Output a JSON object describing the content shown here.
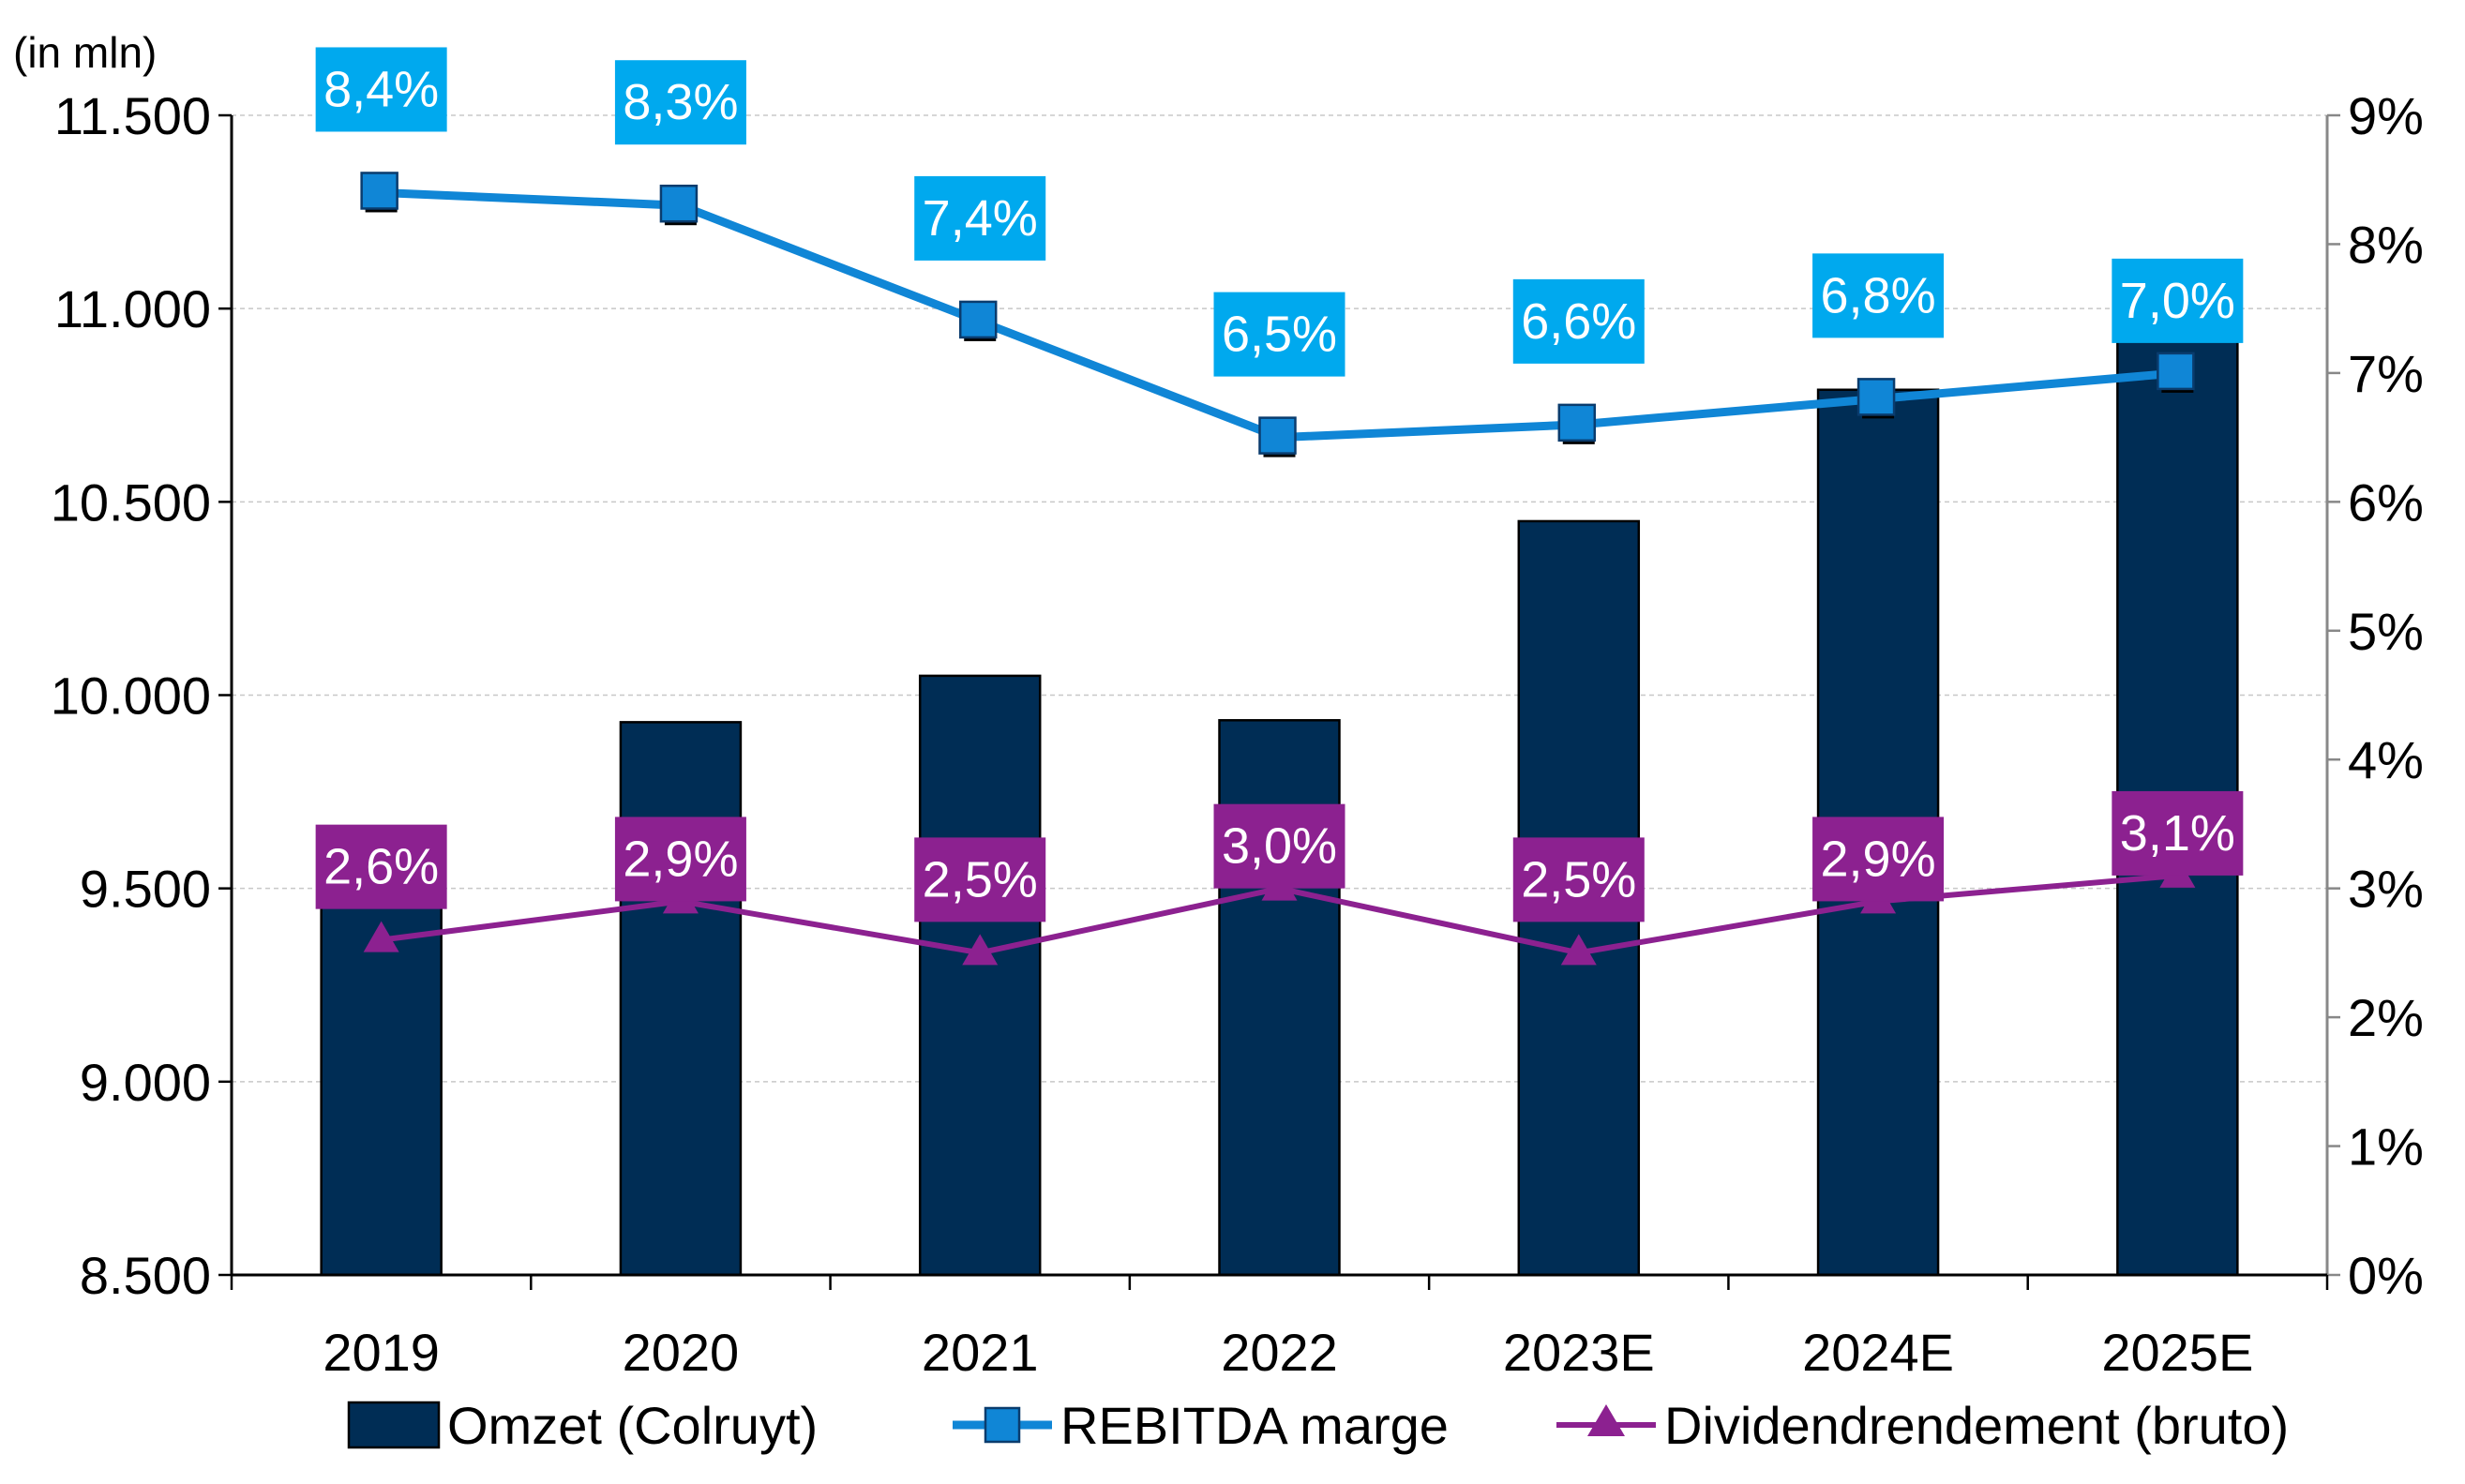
{
  "chart_data": {
    "type": "bar",
    "unit_label": "(in mln)",
    "categories": [
      "2019",
      "2020",
      "2021",
      "2022",
      "2023E",
      "2024E",
      "2025E"
    ],
    "y_left": {
      "min": 8500,
      "max": 11500,
      "ticks": [
        "8.500",
        "9.000",
        "9.500",
        "10.000",
        "10.500",
        "11.000",
        "11.500"
      ],
      "tick_values": [
        8500,
        9000,
        9500,
        10000,
        10500,
        11000,
        11500
      ]
    },
    "y_right": {
      "min": 0,
      "max": 9,
      "ticks": [
        "0%",
        "1%",
        "2%",
        "3%",
        "4%",
        "5%",
        "6%",
        "7%",
        "8%",
        "9%"
      ],
      "tick_values": [
        0,
        1,
        2,
        3,
        4,
        5,
        6,
        7,
        8,
        9
      ]
    },
    "grid": true,
    "legend_position": "bottom",
    "series": [
      {
        "name": "Omzet (Colruyt)",
        "type": "bar",
        "axis": "left",
        "color": "#002d55",
        "values": [
          9490,
          9930,
          10050,
          9935,
          10450,
          10790,
          10960
        ]
      },
      {
        "name": "REBITDA marge",
        "type": "line",
        "axis": "right",
        "color": "#1086d6",
        "label_color": "#00a9ee",
        "marker": "square",
        "values": [
          8.4,
          8.3,
          7.4,
          6.5,
          6.6,
          6.8,
          7.0
        ],
        "labels": [
          "8,4%",
          "8,3%",
          "7,4%",
          "6,5%",
          "6,6%",
          "6,8%",
          "7,0%"
        ]
      },
      {
        "name": "Dividendrendement (bruto)",
        "type": "line",
        "axis": "right",
        "color": "#8c2190",
        "label_color": "#8c2190",
        "marker": "triangle",
        "values": [
          2.6,
          2.9,
          2.5,
          3.0,
          2.5,
          2.9,
          3.1
        ],
        "labels": [
          "2,6%",
          "2,9%",
          "2,5%",
          "3,0%",
          "2,5%",
          "2,9%",
          "3,1%"
        ]
      }
    ]
  }
}
